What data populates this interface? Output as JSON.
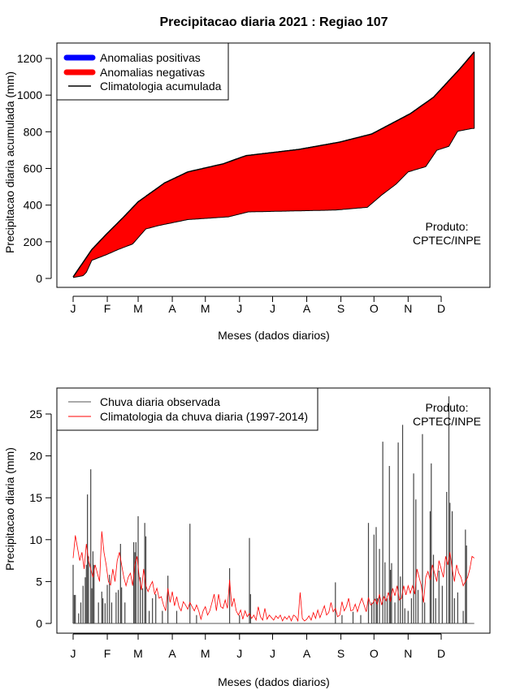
{
  "chart_data": [
    {
      "type": "area",
      "title": "Precipitacao diaria 2021 : Regiao 107",
      "xlabel": "Meses (dados diarios)",
      "ylabel": "Precipitacao diaria acumulada (mm)",
      "ylim": [
        0,
        1200
      ],
      "yticks": [
        "0",
        "200",
        "400",
        "600",
        "800",
        "1000",
        "1200"
      ],
      "xticks": [
        "J",
        "F",
        "M",
        "A",
        "M",
        "J",
        "J",
        "A",
        "S",
        "O",
        "N",
        "D"
      ],
      "xtick_days": [
        1,
        32,
        60,
        91,
        121,
        152,
        182,
        213,
        244,
        274,
        305,
        335
      ],
      "legend": [
        "Anomalias positivas",
        "Anomalias negativas",
        "Climatologia acumulada"
      ],
      "legend_colors": [
        "#0000ff",
        "#ff0000",
        "#000000"
      ],
      "annotation": [
        "Produto:",
        "CPTEC/INPE"
      ],
      "climatology_cumulative": [
        [
          1,
          8
        ],
        [
          18,
          158
        ],
        [
          31,
          240
        ],
        [
          47,
          336
        ],
        [
          60,
          418
        ],
        [
          84,
          521
        ],
        [
          105,
          581
        ],
        [
          137,
          625
        ],
        [
          158,
          670
        ],
        [
          206,
          704
        ],
        [
          243,
          744
        ],
        [
          272,
          788
        ],
        [
          307,
          899
        ],
        [
          328,
          988
        ],
        [
          352,
          1144
        ],
        [
          365,
          1236
        ]
      ],
      "observed_cumulative": [
        [
          1,
          5
        ],
        [
          10,
          15
        ],
        [
          13,
          33
        ],
        [
          18,
          99
        ],
        [
          31,
          129
        ],
        [
          42,
          158
        ],
        [
          55,
          188
        ],
        [
          67,
          270
        ],
        [
          79,
          289
        ],
        [
          105,
          321
        ],
        [
          142,
          336
        ],
        [
          160,
          363
        ],
        [
          239,
          373
        ],
        [
          268,
          388
        ],
        [
          281,
          455
        ],
        [
          294,
          514
        ],
        [
          305,
          581
        ],
        [
          321,
          610
        ],
        [
          331,
          699
        ],
        [
          342,
          721
        ],
        [
          350,
          803
        ],
        [
          363,
          818
        ],
        [
          365,
          818
        ]
      ]
    },
    {
      "type": "bar",
      "xlabel": "Meses (dados diarios)",
      "ylabel": "Precipitacao diaria (mm)",
      "ylim": [
        0,
        27.5
      ],
      "yticks": [
        "0",
        "5",
        "10",
        "15",
        "20",
        "25"
      ],
      "xticks": [
        "J",
        "F",
        "M",
        "A",
        "M",
        "J",
        "J",
        "A",
        "S",
        "O",
        "N",
        "D"
      ],
      "xtick_days": [
        1,
        32,
        60,
        91,
        121,
        152,
        182,
        213,
        244,
        274,
        305,
        335
      ],
      "legend": [
        "Chuva diaria observada",
        "Climatologia da chuva diaria (1997-2014)"
      ],
      "legend_colors": [
        "#555555",
        "#ff0000"
      ],
      "annotation": [
        "Produto:",
        "CPTEC/INPE"
      ],
      "observed_daily": [
        [
          1,
          7.0
        ],
        [
          2,
          3.4
        ],
        [
          3,
          3.4
        ],
        [
          6,
          1.2
        ],
        [
          8,
          2.5
        ],
        [
          10,
          4.5
        ],
        [
          12,
          5.5
        ],
        [
          13,
          7
        ],
        [
          14,
          15.4
        ],
        [
          15,
          8
        ],
        [
          17,
          18.4
        ],
        [
          18,
          4.2
        ],
        [
          19,
          8.6
        ],
        [
          20,
          7
        ],
        [
          24,
          2.5
        ],
        [
          27,
          3.8
        ],
        [
          28,
          3
        ],
        [
          30,
          2.4
        ],
        [
          32,
          4.6
        ],
        [
          34,
          5.8
        ],
        [
          36,
          2.5
        ],
        [
          40,
          3.7
        ],
        [
          42,
          4
        ],
        [
          44,
          9.5
        ],
        [
          45,
          4.3
        ],
        [
          48,
          2.5
        ],
        [
          56,
          9.7
        ],
        [
          57,
          8.5
        ],
        [
          58,
          9.7
        ],
        [
          60,
          12.8
        ],
        [
          62,
          5.5
        ],
        [
          64,
          4.2
        ],
        [
          66,
          12.0
        ],
        [
          67,
          10.4
        ],
        [
          70,
          1.5
        ],
        [
          73,
          3
        ],
        [
          76,
          3.5
        ],
        [
          82,
          1.5
        ],
        [
          87,
          5.7
        ],
        [
          95,
          1.5
        ],
        [
          107,
          11.9
        ],
        [
          113,
          1
        ],
        [
          143,
          6.6
        ],
        [
          152,
          1
        ],
        [
          161,
          10.2
        ],
        [
          162,
          3.5
        ],
        [
          239,
          4.9
        ],
        [
          245,
          1
        ],
        [
          255,
          1.4
        ],
        [
          262,
          1
        ],
        [
          269,
          12.0
        ],
        [
          272,
          2.5
        ],
        [
          274,
          10.6
        ],
        [
          276,
          11.5
        ],
        [
          277,
          3
        ],
        [
          279,
          8.9
        ],
        [
          282,
          21.7
        ],
        [
          284,
          7.3
        ],
        [
          286,
          3
        ],
        [
          288,
          18.8
        ],
        [
          289,
          6.4
        ],
        [
          290,
          7.2
        ],
        [
          293,
          2.5
        ],
        [
          296,
          21.6
        ],
        [
          298,
          5.6
        ],
        [
          300,
          23.7
        ],
        [
          302,
          1.8
        ],
        [
          305,
          1.5
        ],
        [
          308,
          3
        ],
        [
          310,
          17.9
        ],
        [
          312,
          14.8
        ],
        [
          314,
          4
        ],
        [
          318,
          22.6
        ],
        [
          320,
          2.5
        ],
        [
          325,
          13.4
        ],
        [
          326,
          19.1
        ],
        [
          328,
          8.2
        ],
        [
          330,
          3
        ],
        [
          333,
          6.3
        ],
        [
          336,
          4.5
        ],
        [
          340,
          15.7
        ],
        [
          342,
          27.1
        ],
        [
          343,
          14.4
        ],
        [
          345,
          13.4
        ],
        [
          347,
          3
        ],
        [
          350,
          3.7
        ],
        [
          355,
          1.5
        ],
        [
          357,
          11.2
        ],
        [
          358,
          9.3
        ]
      ],
      "climatology_daily": [
        [
          1,
          7.8
        ],
        [
          3,
          10.5
        ],
        [
          5,
          9
        ],
        [
          7,
          7.5
        ],
        [
          9,
          8.5
        ],
        [
          11,
          6.5
        ],
        [
          13,
          9.5
        ],
        [
          15,
          7.5
        ],
        [
          17,
          6.5
        ],
        [
          19,
          5.5
        ],
        [
          21,
          7
        ],
        [
          23,
          6
        ],
        [
          25,
          5
        ],
        [
          27,
          11
        ],
        [
          29,
          8.5
        ],
        [
          31,
          7
        ],
        [
          33,
          5
        ],
        [
          35,
          4.6
        ],
        [
          37,
          6.5
        ],
        [
          39,
          5
        ],
        [
          41,
          7.5
        ],
        [
          43,
          8.5
        ],
        [
          45,
          7
        ],
        [
          47,
          5.5
        ],
        [
          49,
          4.5
        ],
        [
          51,
          5.5
        ],
        [
          53,
          6
        ],
        [
          55,
          4.5
        ],
        [
          57,
          7
        ],
        [
          59,
          8
        ],
        [
          61,
          5.5
        ],
        [
          63,
          4
        ],
        [
          65,
          6.5
        ],
        [
          67,
          4.5
        ],
        [
          69,
          3.8
        ],
        [
          71,
          4.5
        ],
        [
          73,
          5
        ],
        [
          75,
          3.5
        ],
        [
          77,
          4.2
        ],
        [
          79,
          3
        ],
        [
          81,
          3.2
        ],
        [
          83,
          2.2
        ],
        [
          85,
          1.5
        ],
        [
          87,
          4.2
        ],
        [
          89,
          2.5
        ],
        [
          91,
          3.8
        ],
        [
          93,
          2.1
        ],
        [
          95,
          3.2
        ],
        [
          97,
          2
        ],
        [
          99,
          1.5
        ],
        [
          101,
          2.6
        ],
        [
          103,
          2.2
        ],
        [
          105,
          1.7
        ],
        [
          107,
          2.5
        ],
        [
          109,
          2
        ],
        [
          111,
          1.5
        ],
        [
          113,
          2.2
        ],
        [
          115,
          1.5
        ],
        [
          117,
          0.5
        ],
        [
          119,
          1.5
        ],
        [
          121,
          2
        ],
        [
          123,
          1
        ],
        [
          125,
          1.5
        ],
        [
          127,
          2.5
        ],
        [
          129,
          3.5
        ],
        [
          131,
          1.5
        ],
        [
          133,
          3.5
        ],
        [
          135,
          2
        ],
        [
          137,
          1.8
        ],
        [
          139,
          2.8
        ],
        [
          141,
          1.8
        ],
        [
          143,
          5.2
        ],
        [
          145,
          2
        ],
        [
          147,
          3
        ],
        [
          149,
          1.5
        ],
        [
          151,
          1
        ],
        [
          153,
          1.6
        ],
        [
          155,
          0.5
        ],
        [
          157,
          1.5
        ],
        [
          159,
          0.8
        ],
        [
          161,
          1.2
        ],
        [
          163,
          0.6
        ],
        [
          165,
          1
        ],
        [
          167,
          0.4
        ],
        [
          169,
          2
        ],
        [
          171,
          0.8
        ],
        [
          173,
          0.4
        ],
        [
          175,
          1.8
        ],
        [
          177,
          0.5
        ],
        [
          179,
          1
        ],
        [
          181,
          0.7
        ],
        [
          183,
          0.4
        ],
        [
          185,
          0.9
        ],
        [
          187,
          0.6
        ],
        [
          189,
          1
        ],
        [
          191,
          0.3
        ],
        [
          193,
          0.8
        ],
        [
          195,
          0.5
        ],
        [
          197,
          0.9
        ],
        [
          199,
          0.3
        ],
        [
          201,
          1
        ],
        [
          203,
          0.8
        ],
        [
          205,
          0.3
        ],
        [
          207,
          3.7
        ],
        [
          209,
          0.6
        ],
        [
          211,
          0.3
        ],
        [
          213,
          0.5
        ],
        [
          215,
          0.9
        ],
        [
          217,
          0.4
        ],
        [
          219,
          1.3
        ],
        [
          221,
          0.6
        ],
        [
          223,
          1.6
        ],
        [
          225,
          0.7
        ],
        [
          227,
          1.4
        ],
        [
          229,
          2.1
        ],
        [
          231,
          1
        ],
        [
          233,
          1.3
        ],
        [
          235,
          2.5
        ],
        [
          237,
          1.4
        ],
        [
          239,
          1.8
        ],
        [
          241,
          0.8
        ],
        [
          243,
          1
        ],
        [
          245,
          2.6
        ],
        [
          247,
          1.5
        ],
        [
          249,
          2
        ],
        [
          251,
          3
        ],
        [
          253,
          1.5
        ],
        [
          255,
          1.6
        ],
        [
          257,
          2.3
        ],
        [
          259,
          1.4
        ],
        [
          261,
          2.3
        ],
        [
          263,
          3
        ],
        [
          265,
          2.2
        ],
        [
          267,
          1.4
        ],
        [
          269,
          3.1
        ],
        [
          271,
          2.2
        ],
        [
          273,
          2.4
        ],
        [
          275,
          2.9
        ],
        [
          277,
          2.3
        ],
        [
          279,
          3.5
        ],
        [
          281,
          2.2
        ],
        [
          283,
          3.2
        ],
        [
          285,
          2.7
        ],
        [
          287,
          3.7
        ],
        [
          289,
          2.6
        ],
        [
          291,
          4.2
        ],
        [
          293,
          3.3
        ],
        [
          295,
          4.5
        ],
        [
          297,
          2.8
        ],
        [
          299,
          3
        ],
        [
          301,
          4.5
        ],
        [
          303,
          3.4
        ],
        [
          305,
          4.5
        ],
        [
          307,
          3.6
        ],
        [
          309,
          4.5
        ],
        [
          311,
          3.5
        ],
        [
          313,
          6.5
        ],
        [
          315,
          5.5
        ],
        [
          317,
          4.5
        ],
        [
          319,
          2.5
        ],
        [
          321,
          5.5
        ],
        [
          323,
          6.2
        ],
        [
          325,
          5.2
        ],
        [
          327,
          7
        ],
        [
          329,
          6
        ],
        [
          331,
          5
        ],
        [
          333,
          7.5
        ],
        [
          335,
          6.5
        ],
        [
          337,
          5.5
        ],
        [
          339,
          8
        ],
        [
          341,
          7
        ],
        [
          343,
          8.5
        ],
        [
          345,
          6.5
        ],
        [
          347,
          5
        ],
        [
          349,
          7
        ],
        [
          351,
          6
        ],
        [
          353,
          5.5
        ],
        [
          355,
          4.5
        ],
        [
          357,
          5
        ],
        [
          359,
          5.5
        ],
        [
          361,
          6.5
        ],
        [
          363,
          8
        ],
        [
          365,
          7.8
        ]
      ]
    }
  ]
}
